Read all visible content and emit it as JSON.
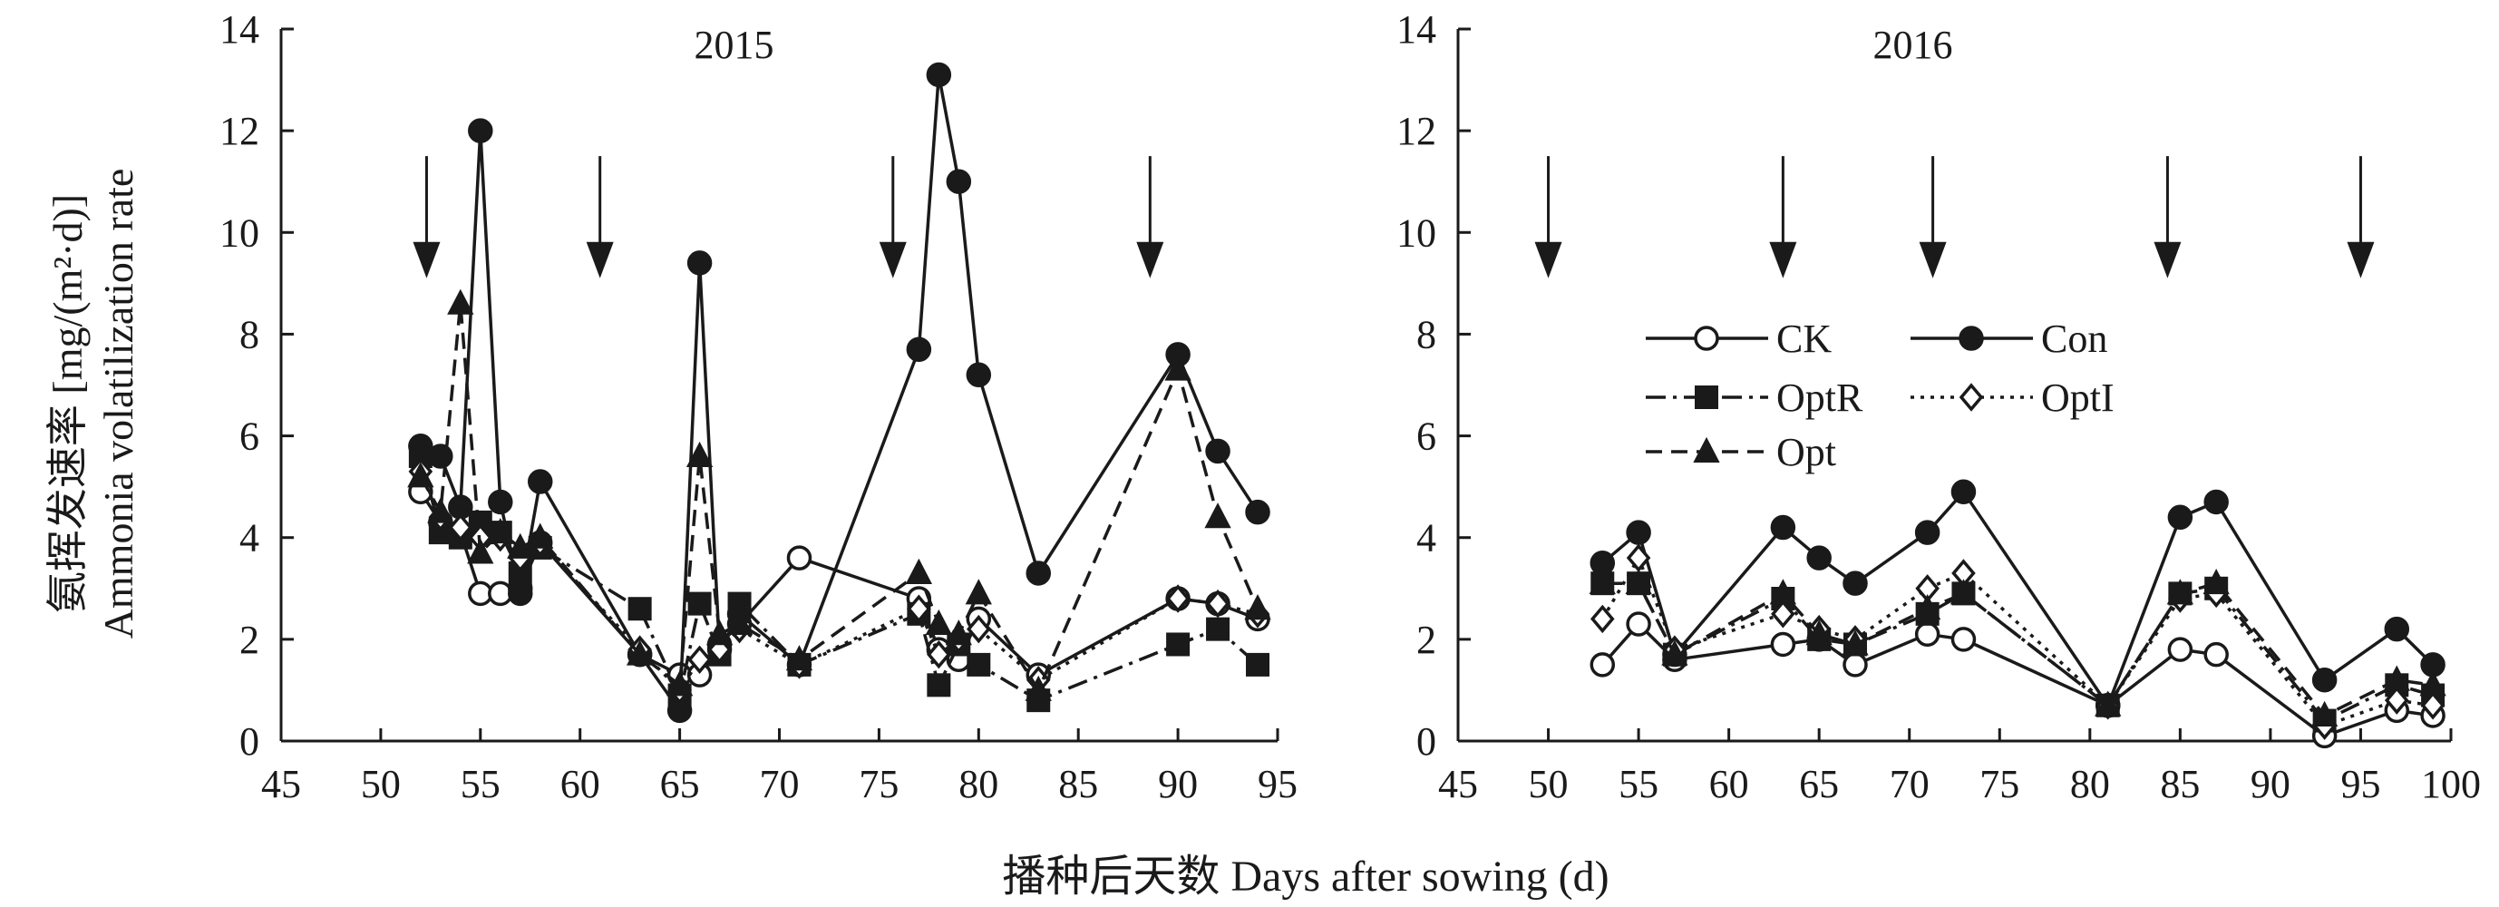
{
  "figure": {
    "ylabel_cn": "氨挥发速率 [mg/(m²·d)]",
    "ylabel_en": "Ammonia volatilization rate",
    "xlabel": "播种后天数 Days after sowing (d)"
  },
  "legend": [
    {
      "name": "CK",
      "marker": "circle-open",
      "line": "solid"
    },
    {
      "name": "Con",
      "marker": "circle-filled",
      "line": "solid"
    },
    {
      "name": "OptR",
      "marker": "square-filled",
      "line": "dashdot"
    },
    {
      "name": "OptI",
      "marker": "diamond-open",
      "line": "dotted"
    },
    {
      "name": "Opt",
      "marker": "triangle-filled",
      "line": "dashed"
    }
  ],
  "chart_data": [
    {
      "type": "line",
      "title": "2015",
      "xlim": [
        45,
        95
      ],
      "ylim": [
        0,
        14
      ],
      "xticks": [
        45,
        50,
        55,
        60,
        65,
        70,
        75,
        80,
        85,
        90,
        95
      ],
      "yticks": [
        0,
        2,
        4,
        6,
        8,
        10,
        12,
        14
      ],
      "fertilization_arrows_x": [
        52.3,
        61,
        75.7,
        88.6
      ],
      "series": [
        {
          "name": "CK",
          "x": [
            52,
            53,
            54,
            55,
            56,
            57,
            58,
            63,
            65,
            66,
            67,
            68,
            71,
            77,
            78,
            79,
            80,
            83,
            90,
            92,
            94
          ],
          "y": [
            4.9,
            4.3,
            4.1,
            2.9,
            2.9,
            3.0,
            3.9,
            1.7,
            1.3,
            1.3,
            1.9,
            2.3,
            3.6,
            2.8,
            1.8,
            1.6,
            2.4,
            1.3,
            2.8,
            2.7,
            2.4
          ]
        },
        {
          "name": "Con",
          "x": [
            52,
            53,
            54,
            55,
            56,
            57,
            58,
            63,
            65,
            66,
            67,
            68,
            71,
            77,
            78,
            79,
            80,
            83,
            90,
            92,
            94
          ],
          "y": [
            5.8,
            5.6,
            4.6,
            12.0,
            4.7,
            2.9,
            5.1,
            1.7,
            0.6,
            9.4,
            1.8,
            2.5,
            1.5,
            7.7,
            13.1,
            11.0,
            7.2,
            3.3,
            7.6,
            5.7,
            4.5
          ]
        },
        {
          "name": "OptR",
          "x": [
            52,
            53,
            54,
            55,
            56,
            57,
            58,
            63,
            65,
            66,
            67,
            68,
            71,
            77,
            78,
            79,
            80,
            83,
            90,
            92,
            94
          ],
          "y": [
            5.6,
            4.1,
            4.0,
            4.3,
            4.1,
            3.3,
            3.8,
            2.6,
            0.9,
            2.7,
            1.7,
            2.7,
            1.5,
            2.5,
            1.1,
            1.9,
            1.5,
            0.8,
            1.9,
            2.2,
            1.5
          ]
        },
        {
          "name": "OptI",
          "x": [
            52,
            53,
            54,
            55,
            56,
            57,
            58,
            63,
            65,
            66,
            67,
            68,
            71,
            77,
            78,
            79,
            80,
            83,
            90,
            92,
            94
          ],
          "y": [
            5.3,
            4.4,
            4.2,
            4.0,
            4.0,
            3.6,
            3.9,
            1.8,
            1.0,
            1.6,
            1.8,
            2.2,
            1.5,
            2.6,
            1.7,
            2.0,
            2.2,
            1.2,
            2.8,
            2.7,
            2.5
          ]
        },
        {
          "name": "Opt",
          "x": [
            52,
            53,
            54,
            55,
            56,
            57,
            58,
            63,
            65,
            66,
            67,
            68,
            71,
            77,
            78,
            79,
            80,
            83,
            90,
            92,
            94
          ],
          "y": [
            5.2,
            4.5,
            8.6,
            3.7,
            4.1,
            3.8,
            4.0,
            1.7,
            1.1,
            5.6,
            2.1,
            2.3,
            1.6,
            3.3,
            2.3,
            2.1,
            2.9,
            1.0,
            7.3,
            4.4,
            2.6
          ]
        }
      ]
    },
    {
      "type": "line",
      "title": "2016",
      "xlim": [
        45,
        100
      ],
      "ylim": [
        0,
        14
      ],
      "xticks": [
        45,
        50,
        55,
        60,
        65,
        70,
        75,
        80,
        85,
        90,
        95,
        100
      ],
      "yticks": [
        0,
        2,
        4,
        6,
        8,
        10,
        12,
        14
      ],
      "fertilization_arrows_x": [
        50,
        63,
        71.3,
        84.3,
        95
      ],
      "series": [
        {
          "name": "CK",
          "x": [
            53,
            55,
            57,
            63,
            65,
            67,
            71,
            73,
            81,
            85,
            87,
            93,
            97,
            99
          ],
          "y": [
            1.5,
            2.3,
            1.6,
            1.9,
            2.0,
            1.5,
            2.1,
            2.0,
            0.7,
            1.8,
            1.7,
            0.1,
            0.6,
            0.5
          ]
        },
        {
          "name": "Con",
          "x": [
            53,
            55,
            57,
            63,
            65,
            67,
            71,
            73,
            81,
            85,
            87,
            93,
            97,
            99
          ],
          "y": [
            3.5,
            4.1,
            1.7,
            4.2,
            3.6,
            3.1,
            4.1,
            4.9,
            0.7,
            4.4,
            4.7,
            1.2,
            2.2,
            1.5
          ]
        },
        {
          "name": "OptR",
          "x": [
            53,
            55,
            57,
            63,
            65,
            67,
            71,
            73,
            81,
            85,
            87,
            93,
            97,
            99
          ],
          "y": [
            3.1,
            3.1,
            1.7,
            2.8,
            2.0,
            1.9,
            2.5,
            2.9,
            0.7,
            2.9,
            3.0,
            0.4,
            1.1,
            0.9
          ]
        },
        {
          "name": "OptI",
          "x": [
            53,
            55,
            57,
            63,
            65,
            67,
            71,
            73,
            81,
            85,
            87,
            93,
            97,
            99
          ],
          "y": [
            2.4,
            3.6,
            1.8,
            2.5,
            2.2,
            2.0,
            3.0,
            3.3,
            0.7,
            2.8,
            2.9,
            0.3,
            0.8,
            0.7
          ]
        },
        {
          "name": "Opt",
          "x": [
            53,
            55,
            57,
            63,
            65,
            67,
            71,
            73,
            81,
            85,
            87,
            93,
            97,
            99
          ],
          "y": [
            3.1,
            3.1,
            1.7,
            2.9,
            2.1,
            1.9,
            2.6,
            2.9,
            0.7,
            2.9,
            3.1,
            0.5,
            1.2,
            1.1
          ]
        }
      ]
    }
  ]
}
